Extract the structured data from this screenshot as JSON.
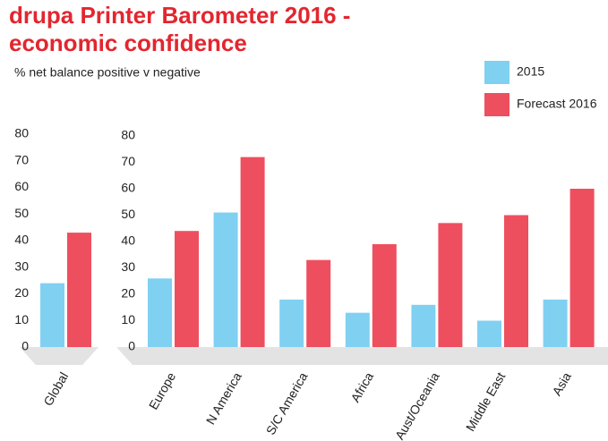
{
  "chart_data": [
    {
      "type": "bar",
      "title": "drupa Printer Barometer 2016 - economic confidence",
      "subtitle": "% net balance positive v negative",
      "categories": [
        "Global"
      ],
      "series": [
        {
          "name": "2015",
          "color": "#80d0f2",
          "values": [
            24
          ]
        },
        {
          "name": "Forecast 2016",
          "color": "#ee4f5f",
          "values": [
            43
          ]
        }
      ],
      "ylim": [
        0,
        80
      ],
      "yticks": [
        0,
        10,
        20,
        30,
        40,
        50,
        60,
        70,
        80
      ]
    },
    {
      "type": "bar",
      "categories": [
        "Europe",
        "N America",
        "S/C America",
        "Africa",
        "Aust/Oceania",
        "Middle East",
        "Asia"
      ],
      "series": [
        {
          "color": "#80d0f2",
          "values": [
            26,
            51,
            18,
            13,
            16,
            10,
            18
          ]
        },
        {
          "color": "#ee4f5f",
          "values": [
            44,
            72,
            33,
            39,
            47,
            50,
            60
          ]
        }
      ],
      "ylim": [
        0,
        80
      ],
      "yticks": [
        0,
        10,
        20,
        30,
        40,
        50,
        60,
        70,
        80
      ]
    }
  ]
}
